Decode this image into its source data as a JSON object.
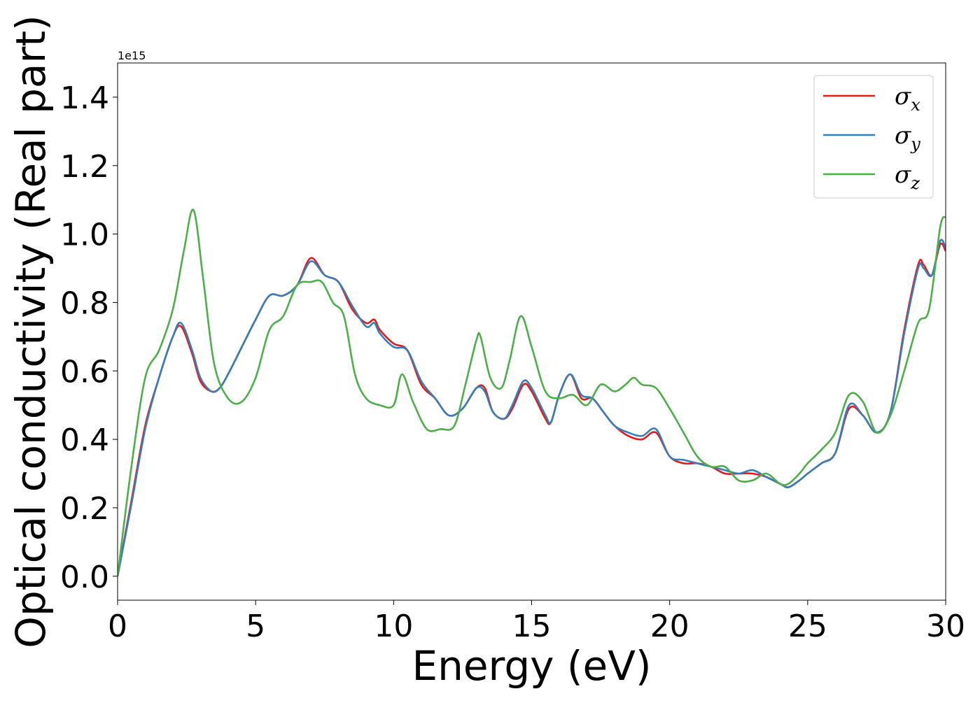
{
  "chart_data": {
    "type": "line",
    "xlabel": "Energy (eV)",
    "ylabel": "Optical conductivity (Real part)",
    "y_offset_label": "1e15",
    "xlim": [
      0,
      30
    ],
    "ylim": [
      -0.07,
      1.5
    ],
    "xticks": [
      0,
      5,
      10,
      15,
      20,
      25,
      30
    ],
    "xtick_labels": [
      "0",
      "5",
      "10",
      "15",
      "20",
      "25",
      "30"
    ],
    "yticks": [
      0.0,
      0.2,
      0.4,
      0.6,
      0.8,
      1.0,
      1.2,
      1.4
    ],
    "ytick_labels": [
      "0.0",
      "0.2",
      "0.4",
      "0.6",
      "0.8",
      "1.0",
      "1.2",
      "1.4"
    ],
    "grid": false,
    "legend": "top-right",
    "series": [
      {
        "name": "σx",
        "label_base": "σ",
        "label_sub": "x",
        "color": "#e41a1c",
        "x": [
          0,
          0.5,
          1,
          1.5,
          2,
          2.3,
          2.7,
          3.0,
          3.4,
          3.7,
          4.0,
          4.5,
          5.0,
          5.5,
          6.0,
          6.5,
          7.0,
          7.5,
          8.0,
          8.5,
          9.0,
          9.3,
          9.5,
          10.0,
          10.5,
          11.0,
          11.5,
          12.0,
          12.5,
          13.0,
          13.3,
          13.6,
          14.0,
          14.3,
          14.7,
          15.0,
          15.5,
          15.7,
          16.0,
          16.4,
          16.8,
          17.2,
          17.6,
          18.0,
          18.5,
          19.0,
          19.5,
          20.0,
          20.5,
          21.0,
          21.5,
          22.0,
          22.5,
          23.0,
          23.5,
          24.0,
          24.3,
          24.7,
          25.0,
          25.5,
          26.0,
          26.5,
          27.0,
          27.5,
          28.0,
          28.5,
          29.0,
          29.2,
          29.5,
          29.8,
          30.0
        ],
        "y": [
          0.0,
          0.22,
          0.44,
          0.58,
          0.7,
          0.73,
          0.65,
          0.57,
          0.54,
          0.55,
          0.59,
          0.67,
          0.75,
          0.82,
          0.82,
          0.85,
          0.93,
          0.88,
          0.86,
          0.78,
          0.74,
          0.75,
          0.72,
          0.68,
          0.66,
          0.56,
          0.52,
          0.47,
          0.49,
          0.55,
          0.55,
          0.48,
          0.46,
          0.49,
          0.56,
          0.54,
          0.46,
          0.45,
          0.53,
          0.59,
          0.52,
          0.52,
          0.48,
          0.44,
          0.41,
          0.4,
          0.42,
          0.35,
          0.33,
          0.33,
          0.32,
          0.3,
          0.3,
          0.3,
          0.29,
          0.27,
          0.26,
          0.28,
          0.3,
          0.33,
          0.36,
          0.49,
          0.47,
          0.42,
          0.48,
          0.72,
          0.91,
          0.91,
          0.88,
          0.97,
          0.95
        ]
      },
      {
        "name": "σy",
        "label_base": "σ",
        "label_sub": "y",
        "color": "#377eb8",
        "x": [
          0,
          0.5,
          1,
          1.5,
          2,
          2.3,
          2.7,
          3.0,
          3.4,
          3.7,
          4.0,
          4.5,
          5.0,
          5.5,
          6.0,
          6.5,
          7.0,
          7.5,
          8.0,
          8.5,
          9.0,
          9.3,
          9.5,
          10.0,
          10.5,
          11.0,
          11.5,
          12.0,
          12.5,
          13.0,
          13.3,
          13.6,
          14.0,
          14.3,
          14.7,
          15.0,
          15.5,
          15.7,
          16.0,
          16.4,
          16.8,
          17.2,
          17.6,
          18.0,
          18.5,
          19.0,
          19.5,
          20.0,
          20.5,
          21.0,
          21.5,
          22.0,
          22.5,
          23.0,
          23.5,
          24.0,
          24.3,
          24.7,
          25.0,
          25.5,
          26.0,
          26.5,
          27.0,
          27.5,
          28.0,
          28.5,
          29.0,
          29.2,
          29.5,
          29.8,
          30.0
        ],
        "y": [
          0.0,
          0.21,
          0.43,
          0.58,
          0.7,
          0.74,
          0.66,
          0.58,
          0.54,
          0.55,
          0.59,
          0.67,
          0.75,
          0.82,
          0.82,
          0.85,
          0.92,
          0.88,
          0.86,
          0.79,
          0.73,
          0.74,
          0.71,
          0.67,
          0.66,
          0.57,
          0.52,
          0.47,
          0.49,
          0.55,
          0.54,
          0.48,
          0.46,
          0.5,
          0.57,
          0.55,
          0.47,
          0.45,
          0.53,
          0.59,
          0.53,
          0.52,
          0.48,
          0.44,
          0.42,
          0.41,
          0.43,
          0.35,
          0.34,
          0.33,
          0.32,
          0.31,
          0.3,
          0.31,
          0.29,
          0.27,
          0.26,
          0.28,
          0.3,
          0.33,
          0.36,
          0.5,
          0.47,
          0.42,
          0.48,
          0.71,
          0.9,
          0.9,
          0.88,
          0.98,
          0.96
        ]
      },
      {
        "name": "σz",
        "label_base": "σ",
        "label_sub": "z",
        "color": "#4daf4a",
        "x": [
          0,
          0.5,
          1,
          1.5,
          2,
          2.4,
          2.75,
          3.1,
          3.5,
          4.0,
          4.5,
          5.0,
          5.5,
          6.0,
          6.5,
          7.0,
          7.4,
          7.8,
          8.2,
          8.6,
          9.0,
          9.5,
          10.0,
          10.3,
          10.7,
          11.2,
          11.7,
          12.2,
          12.6,
          13.0,
          13.15,
          13.5,
          13.9,
          14.2,
          14.6,
          15.0,
          15.5,
          16.0,
          16.5,
          17.0,
          17.5,
          18.0,
          18.4,
          18.7,
          19.0,
          19.5,
          20.0,
          20.5,
          21.0,
          21.5,
          22.0,
          22.5,
          23.0,
          23.5,
          24.0,
          24.3,
          24.7,
          25.0,
          25.5,
          26.0,
          26.5,
          27.0,
          27.5,
          28.0,
          28.5,
          29.0,
          29.4,
          29.8,
          30.0
        ],
        "y": [
          0.0,
          0.32,
          0.58,
          0.66,
          0.78,
          0.95,
          1.07,
          0.87,
          0.62,
          0.52,
          0.51,
          0.58,
          0.72,
          0.76,
          0.85,
          0.86,
          0.86,
          0.8,
          0.76,
          0.59,
          0.52,
          0.5,
          0.5,
          0.59,
          0.51,
          0.43,
          0.43,
          0.44,
          0.56,
          0.69,
          0.7,
          0.58,
          0.55,
          0.63,
          0.76,
          0.67,
          0.54,
          0.52,
          0.53,
          0.5,
          0.56,
          0.54,
          0.56,
          0.58,
          0.56,
          0.55,
          0.49,
          0.42,
          0.35,
          0.32,
          0.32,
          0.28,
          0.28,
          0.3,
          0.27,
          0.27,
          0.3,
          0.33,
          0.37,
          0.42,
          0.53,
          0.51,
          0.42,
          0.47,
          0.6,
          0.74,
          0.78,
          1.02,
          1.05
        ]
      }
    ]
  }
}
